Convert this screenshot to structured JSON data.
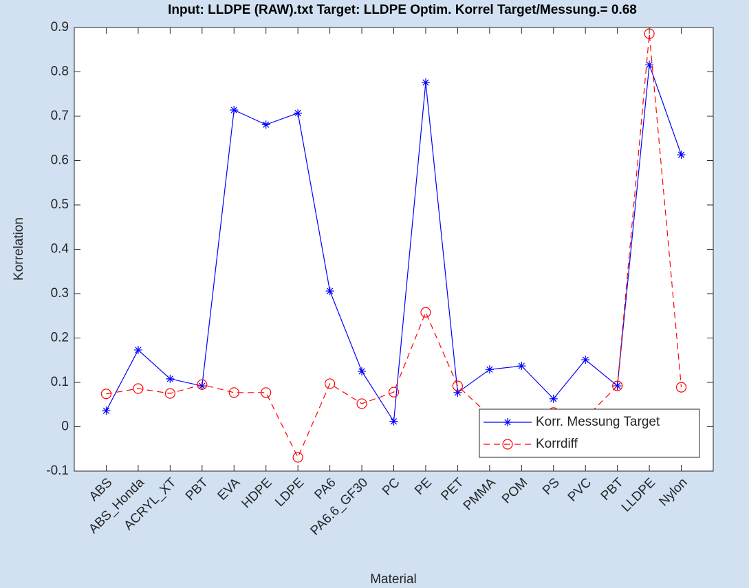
{
  "chart_data": {
    "type": "line",
    "title": "Input: LLDPE (RAW).txt   Target: LLDPE   Optim. Korrel Target/Messung.= 0.68",
    "x_label": "Material",
    "y_label": "Korrelation",
    "categories": [
      "ABS",
      "ABS_Honda",
      "ACRYL_XT",
      "PBT",
      "EVA",
      "HDPE",
      "LDPE",
      "PA6",
      "PA6.6_GF30",
      "PC",
      "PE",
      "PET",
      "PMMA",
      "POM",
      "PS",
      "PVC",
      "PBT",
      "LLDPE",
      "Nylon"
    ],
    "series": [
      {
        "name": "Korr. Messung Target",
        "color": "#0000ff",
        "marker": "asterisk",
        "dashed": false,
        "values": [
          0.036,
          0.173,
          0.108,
          0.092,
          0.714,
          0.681,
          0.707,
          0.306,
          0.125,
          0.012,
          0.776,
          0.077,
          0.129,
          0.137,
          0.063,
          0.151,
          0.092,
          0.816,
          0.613
        ]
      },
      {
        "name": "Korrdiff",
        "color": "#ff0000",
        "marker": "circle",
        "dashed": true,
        "values": [
          0.074,
          0.086,
          0.075,
          0.095,
          0.077,
          0.077,
          -0.069,
          0.097,
          0.052,
          0.078,
          0.258,
          0.092,
          0.025,
          0.02,
          0.032,
          0.02,
          0.092,
          0.886,
          0.089
        ]
      }
    ],
    "ylim": [
      -0.1,
      0.9
    ],
    "yticks": [
      -0.1,
      0,
      0.1,
      0.2,
      0.3,
      0.4,
      0.5,
      0.6,
      0.7,
      0.8,
      0.9
    ],
    "legend": "lower right"
  }
}
